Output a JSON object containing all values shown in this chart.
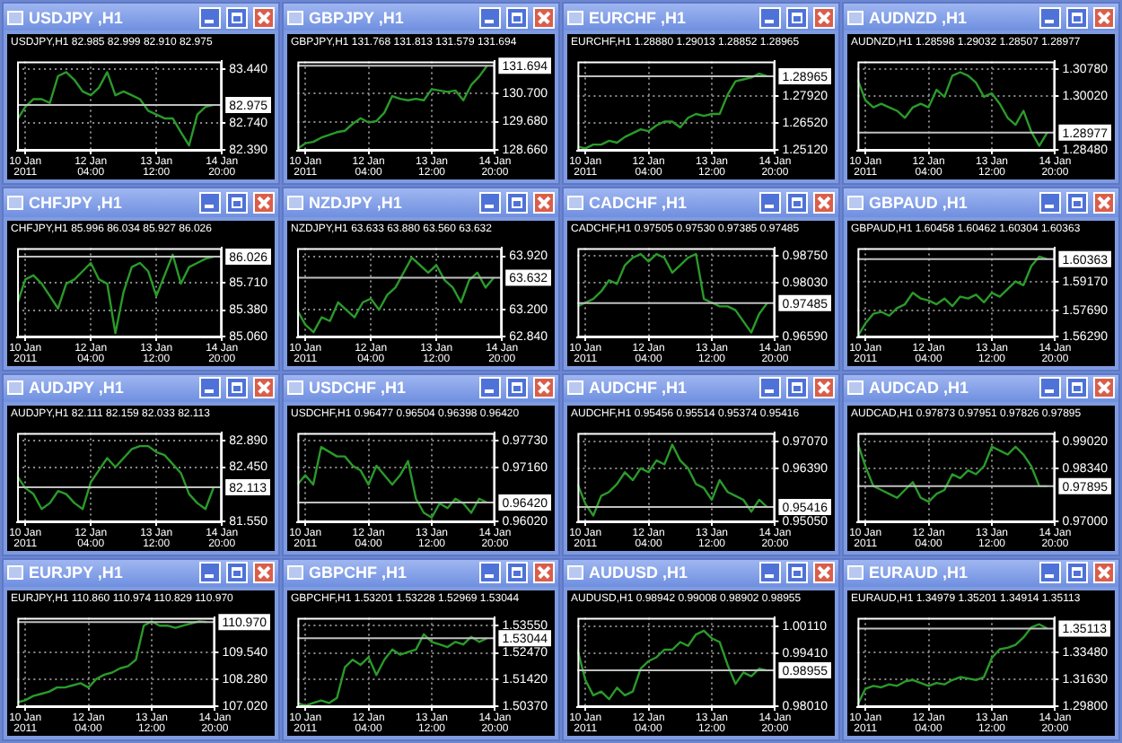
{
  "chart_data": [
    {
      "type": "line",
      "title": "USDJPY ,H1",
      "subtitle": "USDJPY,H1 82.985 82.999 82.910 82.975",
      "color": "#2a9a2a",
      "grid": true,
      "x": [
        "2011-01-10T16:00",
        "2011-01-10T20:00",
        "2011-01-11T00:00",
        "2011-01-11T04:00",
        "2011-01-11T08:00",
        "2011-01-11T12:00",
        "2011-01-11T16:00",
        "2011-01-11T20:00",
        "2011-01-12T00:00",
        "2011-01-12T04:00",
        "2011-01-12T08:00",
        "2011-01-12T12:00",
        "2011-01-12T16:00",
        "2011-01-12T20:00",
        "2011-01-13T00:00",
        "2011-01-13T04:00",
        "2011-01-13T08:00",
        "2011-01-13T12:00",
        "2011-01-13T16:00",
        "2011-01-13T20:00",
        "2011-01-14T00:00",
        "2011-01-14T04:00",
        "2011-01-14T08:00",
        "2011-01-14T12:00",
        "2011-01-14T16:00"
      ],
      "xlim": [
        "2011-01-10T16:00",
        "2011-01-14T20:00"
      ],
      "xticks": [
        {
          "value": "2011-01-10T20:00",
          "label": "10 Jan 2011"
        },
        {
          "value": "2011-01-12T04:00",
          "label": "12 Jan 04:00"
        },
        {
          "value": "2011-01-13T12:00",
          "label": "13 Jan 12:00"
        },
        {
          "value": "2011-01-14T20:00",
          "label": "14 Jan 20:00"
        }
      ],
      "values": [
        82.78,
        82.95,
        83.05,
        83.05,
        83.0,
        83.35,
        83.4,
        83.3,
        83.15,
        83.1,
        83.2,
        83.4,
        83.1,
        83.15,
        83.1,
        83.05,
        82.9,
        82.85,
        82.8,
        82.8,
        82.62,
        82.45,
        82.85,
        82.95,
        82.975
      ],
      "ylim": [
        82.38,
        83.54
      ],
      "yticks": [
        {
          "value": 82.39,
          "label": "82.390"
        },
        {
          "value": 82.74,
          "label": "82.740"
        },
        {
          "value": 83.44,
          "label": "83.440"
        }
      ],
      "ref_lines": [
        {
          "axis": "y",
          "value": 82.975,
          "label": "82.975",
          "color": "#c0c0c0"
        }
      ]
    },
    {
      "type": "line",
      "title": "GBPJPY ,H1",
      "subtitle": "GBPJPY,H1 131.768 131.813 131.579 131.694",
      "color": "#2a9a2a",
      "grid": true,
      "x": [
        "2011-01-10T16:00",
        "2011-01-10T20:00",
        "2011-01-11T00:00",
        "2011-01-11T04:00",
        "2011-01-11T08:00",
        "2011-01-11T12:00",
        "2011-01-11T16:00",
        "2011-01-11T20:00",
        "2011-01-12T00:00",
        "2011-01-12T04:00",
        "2011-01-12T08:00",
        "2011-01-12T12:00",
        "2011-01-12T16:00",
        "2011-01-12T20:00",
        "2011-01-13T00:00",
        "2011-01-13T04:00",
        "2011-01-13T08:00",
        "2011-01-13T12:00",
        "2011-01-13T16:00",
        "2011-01-13T20:00",
        "2011-01-14T00:00",
        "2011-01-14T04:00",
        "2011-01-14T08:00",
        "2011-01-14T12:00",
        "2011-01-14T16:00"
      ],
      "xlim": [
        "2011-01-10T16:00",
        "2011-01-14T20:00"
      ],
      "xticks": [
        {
          "value": "2011-01-10T20:00",
          "label": "10 Jan 2011"
        },
        {
          "value": "2011-01-12T04:00",
          "label": "12 Jan 04:00"
        },
        {
          "value": "2011-01-13T12:00",
          "label": "13 Jan 12:00"
        },
        {
          "value": "2011-01-14T20:00",
          "label": "14 Jan 20:00"
        }
      ],
      "values": [
        128.7,
        128.9,
        128.95,
        129.1,
        129.2,
        129.3,
        129.35,
        129.6,
        129.8,
        129.65,
        129.7,
        130.0,
        130.6,
        130.5,
        130.45,
        130.5,
        130.45,
        130.85,
        130.8,
        130.75,
        130.8,
        130.45,
        131.0,
        131.3,
        131.694
      ],
      "ylim": [
        128.63,
        131.85
      ],
      "yticks": [
        {
          "value": 128.66,
          "label": "128.660"
        },
        {
          "value": 129.68,
          "label": "129.680"
        },
        {
          "value": 130.7,
          "label": "130.700"
        }
      ],
      "ref_lines": [
        {
          "axis": "y",
          "value": 131.694,
          "label": "131.694",
          "color": "#c0c0c0"
        }
      ]
    },
    {
      "type": "line",
      "title": "EURCHF ,H1",
      "subtitle": "EURCHF,H1 1.28880 1.29013 1.28852 1.28965",
      "color": "#2a9a2a",
      "grid": true,
      "x": [
        "2011-01-10T16:00",
        "2011-01-10T20:00",
        "2011-01-11T00:00",
        "2011-01-11T04:00",
        "2011-01-11T08:00",
        "2011-01-11T12:00",
        "2011-01-11T16:00",
        "2011-01-11T20:00",
        "2011-01-12T00:00",
        "2011-01-12T04:00",
        "2011-01-12T08:00",
        "2011-01-12T12:00",
        "2011-01-12T16:00",
        "2011-01-12T20:00",
        "2011-01-13T00:00",
        "2011-01-13T04:00",
        "2011-01-13T08:00",
        "2011-01-13T12:00",
        "2011-01-13T16:00",
        "2011-01-13T20:00",
        "2011-01-14T00:00",
        "2011-01-14T04:00",
        "2011-01-14T08:00",
        "2011-01-14T12:00",
        "2011-01-14T16:00"
      ],
      "xlim": [
        "2011-01-10T16:00",
        "2011-01-14T20:00"
      ],
      "xticks": [
        {
          "value": "2011-01-10T20:00",
          "label": "10 Jan 2011"
        },
        {
          "value": "2011-01-12T04:00",
          "label": "12 Jan 04:00"
        },
        {
          "value": "2011-01-13T12:00",
          "label": "13 Jan 12:00"
        },
        {
          "value": "2011-01-14T20:00",
          "label": "14 Jan 20:00"
        }
      ],
      "values": [
        1.253,
        1.252,
        1.254,
        1.254,
        1.256,
        1.255,
        1.258,
        1.26,
        1.262,
        1.261,
        1.264,
        1.266,
        1.266,
        1.263,
        1.268,
        1.27,
        1.269,
        1.27,
        1.27,
        1.28,
        1.287,
        1.288,
        1.289,
        1.291,
        1.28965
      ],
      "ylim": [
        1.2508,
        1.2974
      ],
      "yticks": [
        {
          "value": 1.2512,
          "label": "1.25120"
        },
        {
          "value": 1.2652,
          "label": "1.26520"
        },
        {
          "value": 1.2792,
          "label": "1.27920"
        }
      ],
      "ref_lines": [
        {
          "axis": "y",
          "value": 1.28965,
          "label": "1.28965",
          "color": "#c0c0c0"
        }
      ]
    },
    {
      "type": "line",
      "title": "AUDNZD ,H1",
      "subtitle": "AUDNZD,H1 1.28598 1.29032 1.28507 1.28977",
      "color": "#2a9a2a",
      "grid": true,
      "x": [
        "2011-01-10T16:00",
        "2011-01-10T20:00",
        "2011-01-11T00:00",
        "2011-01-11T04:00",
        "2011-01-11T08:00",
        "2011-01-11T12:00",
        "2011-01-11T16:00",
        "2011-01-11T20:00",
        "2011-01-12T00:00",
        "2011-01-12T04:00",
        "2011-01-12T08:00",
        "2011-01-12T12:00",
        "2011-01-12T16:00",
        "2011-01-12T20:00",
        "2011-01-13T00:00",
        "2011-01-13T04:00",
        "2011-01-13T08:00",
        "2011-01-13T12:00",
        "2011-01-13T16:00",
        "2011-01-13T20:00",
        "2011-01-14T00:00",
        "2011-01-14T04:00",
        "2011-01-14T08:00",
        "2011-01-14T12:00",
        "2011-01-14T16:00"
      ],
      "xlim": [
        "2011-01-10T16:00",
        "2011-01-14T20:00"
      ],
      "xticks": [
        {
          "value": "2011-01-10T20:00",
          "label": "10 Jan 2011"
        },
        {
          "value": "2011-01-12T04:00",
          "label": "12 Jan 04:00"
        },
        {
          "value": "2011-01-13T12:00",
          "label": "13 Jan 12:00"
        },
        {
          "value": "2011-01-14T20:00",
          "label": "14 Jan 20:00"
        }
      ],
      "values": [
        1.305,
        1.299,
        1.297,
        1.298,
        1.297,
        1.296,
        1.294,
        1.297,
        1.298,
        1.297,
        1.302,
        1.3,
        1.306,
        1.307,
        1.306,
        1.304,
        1.3,
        1.301,
        1.298,
        1.294,
        1.292,
        1.296,
        1.29,
        1.286,
        1.28977
      ],
      "ylim": [
        1.2846,
        1.3101
      ],
      "yticks": [
        {
          "value": 1.2848,
          "label": "1.28480"
        },
        {
          "value": 1.3002,
          "label": "1.30020"
        },
        {
          "value": 1.3078,
          "label": "1.30780"
        }
      ],
      "ref_lines": [
        {
          "axis": "y",
          "value": 1.28977,
          "label": "1.28977",
          "color": "#c0c0c0"
        }
      ]
    },
    {
      "type": "line",
      "title": "CHFJPY ,H1",
      "subtitle": "CHFJPY,H1 85.996 86.034 85.927 86.026",
      "color": "#2a9a2a",
      "grid": true,
      "x": [
        "2011-01-10T16:00",
        "2011-01-10T20:00",
        "2011-01-11T00:00",
        "2011-01-11T04:00",
        "2011-01-11T08:00",
        "2011-01-11T12:00",
        "2011-01-11T16:00",
        "2011-01-11T20:00",
        "2011-01-12T00:00",
        "2011-01-12T04:00",
        "2011-01-12T08:00",
        "2011-01-12T12:00",
        "2011-01-12T16:00",
        "2011-01-12T20:00",
        "2011-01-13T00:00",
        "2011-01-13T04:00",
        "2011-01-13T08:00",
        "2011-01-13T12:00",
        "2011-01-13T16:00",
        "2011-01-13T20:00",
        "2011-01-14T00:00",
        "2011-01-14T04:00",
        "2011-01-14T08:00",
        "2011-01-14T12:00",
        "2011-01-14T16:00"
      ],
      "xlim": [
        "2011-01-10T16:00",
        "2011-01-14T20:00"
      ],
      "xticks": [
        {
          "value": "2011-01-10T20:00",
          "label": "10 Jan 2011"
        },
        {
          "value": "2011-01-12T04:00",
          "label": "12 Jan 04:00"
        },
        {
          "value": "2011-01-13T12:00",
          "label": "13 Jan 12:00"
        },
        {
          "value": "2011-01-14T20:00",
          "label": "14 Jan 20:00"
        }
      ],
      "values": [
        85.45,
        85.75,
        85.8,
        85.7,
        85.55,
        85.4,
        85.7,
        85.75,
        85.85,
        85.95,
        85.75,
        85.7,
        85.1,
        85.6,
        85.9,
        85.95,
        85.85,
        85.55,
        85.8,
        86.05,
        85.7,
        85.9,
        85.95,
        86.0,
        86.026
      ],
      "ylim": [
        85.05,
        86.13
      ],
      "yticks": [
        {
          "value": 85.06,
          "label": "85.060"
        },
        {
          "value": 85.38,
          "label": "85.380"
        },
        {
          "value": 85.71,
          "label": "85.710"
        }
      ],
      "ref_lines": [
        {
          "axis": "y",
          "value": 86.026,
          "label": "86.026",
          "color": "#c0c0c0"
        }
      ]
    },
    {
      "type": "line",
      "title": "NZDJPY ,H1",
      "subtitle": "NZDJPY,H1 63.633 63.880 63.560 63.632",
      "color": "#2a9a2a",
      "grid": true,
      "x": [
        "2011-01-10T16:00",
        "2011-01-10T20:00",
        "2011-01-11T00:00",
        "2011-01-11T04:00",
        "2011-01-11T08:00",
        "2011-01-11T12:00",
        "2011-01-11T16:00",
        "2011-01-11T20:00",
        "2011-01-12T00:00",
        "2011-01-12T04:00",
        "2011-01-12T08:00",
        "2011-01-12T12:00",
        "2011-01-12T16:00",
        "2011-01-12T20:00",
        "2011-01-13T00:00",
        "2011-01-13T04:00",
        "2011-01-13T08:00",
        "2011-01-13T12:00",
        "2011-01-13T16:00",
        "2011-01-13T20:00",
        "2011-01-14T00:00",
        "2011-01-14T04:00",
        "2011-01-14T08:00",
        "2011-01-14T12:00",
        "2011-01-14T16:00"
      ],
      "xlim": [
        "2011-01-10T16:00",
        "2011-01-14T20:00"
      ],
      "xticks": [
        {
          "value": "2011-01-10T20:00",
          "label": "10 Jan 2011"
        },
        {
          "value": "2011-01-12T04:00",
          "label": "12 Jan 04:00"
        },
        {
          "value": "2011-01-13T12:00",
          "label": "13 Jan 12:00"
        },
        {
          "value": "2011-01-14T20:00",
          "label": "14 Jan 20:00"
        }
      ],
      "values": [
        63.2,
        63.0,
        62.9,
        63.1,
        63.05,
        63.3,
        63.2,
        63.1,
        63.3,
        63.35,
        63.2,
        63.4,
        63.5,
        63.7,
        63.9,
        63.8,
        63.7,
        63.8,
        63.6,
        63.5,
        63.3,
        63.6,
        63.7,
        63.5,
        63.632
      ],
      "ylim": [
        62.83,
        64.03
      ],
      "yticks": [
        {
          "value": 62.84,
          "label": "62.840"
        },
        {
          "value": 63.2,
          "label": "63.200"
        },
        {
          "value": 63.92,
          "label": "63.920"
        }
      ],
      "ref_lines": [
        {
          "axis": "y",
          "value": 63.632,
          "label": "63.632",
          "color": "#c0c0c0"
        }
      ]
    },
    {
      "type": "line",
      "title": "CADCHF ,H1",
      "subtitle": "CADCHF,H1 0.97505 0.97530 0.97385 0.97485",
      "color": "#2a9a2a",
      "grid": true,
      "x": [
        "2011-01-10T16:00",
        "2011-01-10T20:00",
        "2011-01-11T00:00",
        "2011-01-11T04:00",
        "2011-01-11T08:00",
        "2011-01-11T12:00",
        "2011-01-11T16:00",
        "2011-01-11T20:00",
        "2011-01-12T00:00",
        "2011-01-12T04:00",
        "2011-01-12T08:00",
        "2011-01-12T12:00",
        "2011-01-12T16:00",
        "2011-01-12T20:00",
        "2011-01-13T00:00",
        "2011-01-13T04:00",
        "2011-01-13T08:00",
        "2011-01-13T12:00",
        "2011-01-13T16:00",
        "2011-01-13T20:00",
        "2011-01-14T00:00",
        "2011-01-14T04:00",
        "2011-01-14T08:00",
        "2011-01-14T12:00",
        "2011-01-14T16:00"
      ],
      "xlim": [
        "2011-01-10T16:00",
        "2011-01-14T20:00"
      ],
      "xticks": [
        {
          "value": "2011-01-10T20:00",
          "label": "10 Jan 2011"
        },
        {
          "value": "2011-01-12T04:00",
          "label": "12 Jan 04:00"
        },
        {
          "value": "2011-01-13T12:00",
          "label": "13 Jan 12:00"
        },
        {
          "value": "2011-01-14T20:00",
          "label": "14 Jan 20:00"
        }
      ],
      "values": [
        0.974,
        0.975,
        0.976,
        0.978,
        0.981,
        0.98,
        0.985,
        0.987,
        0.988,
        0.986,
        0.988,
        0.987,
        0.983,
        0.985,
        0.987,
        0.988,
        0.976,
        0.975,
        0.974,
        0.974,
        0.973,
        0.97,
        0.967,
        0.972,
        0.97485
      ],
      "ylim": [
        0.9657,
        0.9896
      ],
      "yticks": [
        {
          "value": 0.9659,
          "label": "0.96590"
        },
        {
          "value": 0.9803,
          "label": "0.98030"
        },
        {
          "value": 0.9875,
          "label": "0.98750"
        }
      ],
      "ref_lines": [
        {
          "axis": "y",
          "value": 0.97485,
          "label": "0.97485",
          "color": "#c0c0c0"
        }
      ]
    },
    {
      "type": "line",
      "title": "GBPAUD ,H1",
      "subtitle": "GBPAUD,H1 1.60458 1.60462 1.60304 1.60363",
      "color": "#2a9a2a",
      "grid": true,
      "x": [
        "2011-01-10T16:00",
        "2011-01-10T20:00",
        "2011-01-11T00:00",
        "2011-01-11T04:00",
        "2011-01-11T08:00",
        "2011-01-11T12:00",
        "2011-01-11T16:00",
        "2011-01-11T20:00",
        "2011-01-12T00:00",
        "2011-01-12T04:00",
        "2011-01-12T08:00",
        "2011-01-12T12:00",
        "2011-01-12T16:00",
        "2011-01-12T20:00",
        "2011-01-13T00:00",
        "2011-01-13T04:00",
        "2011-01-13T08:00",
        "2011-01-13T12:00",
        "2011-01-13T16:00",
        "2011-01-13T20:00",
        "2011-01-14T00:00",
        "2011-01-14T04:00",
        "2011-01-14T08:00",
        "2011-01-14T12:00",
        "2011-01-14T16:00"
      ],
      "xlim": [
        "2011-01-10T16:00",
        "2011-01-14T20:00"
      ],
      "xticks": [
        {
          "value": "2011-01-10T20:00",
          "label": "10 Jan 2011"
        },
        {
          "value": "2011-01-12T04:00",
          "label": "12 Jan 04:00"
        },
        {
          "value": "2011-01-13T12:00",
          "label": "13 Jan 12:00"
        },
        {
          "value": "2011-01-14T20:00",
          "label": "14 Jan 20:00"
        }
      ],
      "values": [
        1.563,
        1.57,
        1.575,
        1.576,
        1.574,
        1.578,
        1.58,
        1.586,
        1.583,
        1.582,
        1.58,
        1.583,
        1.579,
        1.584,
        1.583,
        1.585,
        1.581,
        1.586,
        1.584,
        1.588,
        1.592,
        1.59,
        1.6,
        1.605,
        1.60363
      ],
      "ylim": [
        1.5626,
        1.6095
      ],
      "yticks": [
        {
          "value": 1.5629,
          "label": "1.56290"
        },
        {
          "value": 1.5769,
          "label": "1.57690"
        },
        {
          "value": 1.5917,
          "label": "1.59170"
        }
      ],
      "ref_lines": [
        {
          "axis": "y",
          "value": 1.60363,
          "label": "1.60363",
          "color": "#c0c0c0"
        }
      ]
    },
    {
      "type": "line",
      "title": "AUDJPY ,H1",
      "subtitle": "AUDJPY,H1 82.111 82.159 82.033 82.113",
      "color": "#2a9a2a",
      "grid": true,
      "x": [
        "2011-01-10T16:00",
        "2011-01-10T20:00",
        "2011-01-11T00:00",
        "2011-01-11T04:00",
        "2011-01-11T08:00",
        "2011-01-11T12:00",
        "2011-01-11T16:00",
        "2011-01-11T20:00",
        "2011-01-12T00:00",
        "2011-01-12T04:00",
        "2011-01-12T08:00",
        "2011-01-12T12:00",
        "2011-01-12T16:00",
        "2011-01-12T20:00",
        "2011-01-13T00:00",
        "2011-01-13T04:00",
        "2011-01-13T08:00",
        "2011-01-13T12:00",
        "2011-01-13T16:00",
        "2011-01-13T20:00",
        "2011-01-14T00:00",
        "2011-01-14T04:00",
        "2011-01-14T08:00",
        "2011-01-14T12:00",
        "2011-01-14T16:00"
      ],
      "xlim": [
        "2011-01-10T16:00",
        "2011-01-14T20:00"
      ],
      "xticks": [
        {
          "value": "2011-01-10T20:00",
          "label": "10 Jan 2011"
        },
        {
          "value": "2011-01-12T04:00",
          "label": "12 Jan 04:00"
        },
        {
          "value": "2011-01-13T12:00",
          "label": "13 Jan 12:00"
        },
        {
          "value": "2011-01-14T20:00",
          "label": "14 Jan 20:00"
        }
      ],
      "values": [
        82.3,
        82.1,
        82.0,
        81.75,
        81.85,
        82.05,
        82.0,
        81.85,
        81.75,
        82.2,
        82.4,
        82.6,
        82.45,
        82.6,
        82.75,
        82.8,
        82.8,
        82.7,
        82.65,
        82.5,
        82.35,
        82.0,
        81.85,
        81.75,
        82.113
      ],
      "ylim": [
        81.53,
        83.02
      ],
      "yticks": [
        {
          "value": 81.55,
          "label": "81.550"
        },
        {
          "value": 82.45,
          "label": "82.450"
        },
        {
          "value": 82.89,
          "label": "82.890"
        }
      ],
      "ref_lines": [
        {
          "axis": "y",
          "value": 82.113,
          "label": "82.113",
          "color": "#c0c0c0"
        }
      ]
    },
    {
      "type": "line",
      "title": "USDCHF ,H1",
      "subtitle": "USDCHF,H1 0.96477 0.96504 0.96398 0.96420",
      "color": "#2a9a2a",
      "grid": true,
      "x": [
        "2011-01-10T16:00",
        "2011-01-10T20:00",
        "2011-01-11T00:00",
        "2011-01-11T04:00",
        "2011-01-11T08:00",
        "2011-01-11T12:00",
        "2011-01-11T16:00",
        "2011-01-11T20:00",
        "2011-01-12T00:00",
        "2011-01-12T04:00",
        "2011-01-12T08:00",
        "2011-01-12T12:00",
        "2011-01-12T16:00",
        "2011-01-12T20:00",
        "2011-01-13T00:00",
        "2011-01-13T04:00",
        "2011-01-13T08:00",
        "2011-01-13T12:00",
        "2011-01-13T16:00",
        "2011-01-13T20:00",
        "2011-01-14T00:00",
        "2011-01-14T04:00",
        "2011-01-14T08:00",
        "2011-01-14T12:00",
        "2011-01-14T16:00"
      ],
      "xlim": [
        "2011-01-10T16:00",
        "2011-01-14T20:00"
      ],
      "xticks": [
        {
          "value": "2011-01-10T20:00",
          "label": "10 Jan 2011"
        },
        {
          "value": "2011-01-12T04:00",
          "label": "12 Jan 04:00"
        },
        {
          "value": "2011-01-13T12:00",
          "label": "13 Jan 12:00"
        },
        {
          "value": "2011-01-14T20:00",
          "label": "14 Jan 20:00"
        }
      ],
      "values": [
        0.968,
        0.97,
        0.968,
        0.976,
        0.975,
        0.974,
        0.974,
        0.972,
        0.971,
        0.968,
        0.972,
        0.97,
        0.968,
        0.97,
        0.973,
        0.965,
        0.962,
        0.961,
        0.964,
        0.963,
        0.965,
        0.964,
        0.962,
        0.965,
        0.9642
      ],
      "ylim": [
        0.96,
        0.979
      ],
      "yticks": [
        {
          "value": 0.9602,
          "label": "0.96020"
        },
        {
          "value": 0.9716,
          "label": "0.97160"
        },
        {
          "value": 0.9773,
          "label": "0.97730"
        }
      ],
      "ref_lines": [
        {
          "axis": "y",
          "value": 0.9642,
          "label": "0.96420",
          "color": "#c0c0c0"
        }
      ]
    },
    {
      "type": "line",
      "title": "AUDCHF ,H1",
      "subtitle": "AUDCHF,H1 0.95456 0.95514 0.95374 0.95416",
      "color": "#2a9a2a",
      "grid": true,
      "x": [
        "2011-01-10T16:00",
        "2011-01-10T20:00",
        "2011-01-11T00:00",
        "2011-01-11T04:00",
        "2011-01-11T08:00",
        "2011-01-11T12:00",
        "2011-01-11T16:00",
        "2011-01-11T20:00",
        "2011-01-12T00:00",
        "2011-01-12T04:00",
        "2011-01-12T08:00",
        "2011-01-12T12:00",
        "2011-01-12T16:00",
        "2011-01-12T20:00",
        "2011-01-13T00:00",
        "2011-01-13T04:00",
        "2011-01-13T08:00",
        "2011-01-13T12:00",
        "2011-01-13T16:00",
        "2011-01-13T20:00",
        "2011-01-14T00:00",
        "2011-01-14T04:00",
        "2011-01-14T08:00",
        "2011-01-14T12:00",
        "2011-01-14T16:00"
      ],
      "xlim": [
        "2011-01-10T16:00",
        "2011-01-14T20:00"
      ],
      "xticks": [
        {
          "value": "2011-01-10T20:00",
          "label": "10 Jan 2011"
        },
        {
          "value": "2011-01-12T04:00",
          "label": "12 Jan 04:00"
        },
        {
          "value": "2011-01-13T12:00",
          "label": "13 Jan 12:00"
        },
        {
          "value": "2011-01-14T20:00",
          "label": "14 Jan 20:00"
        }
      ],
      "values": [
        0.96,
        0.955,
        0.952,
        0.957,
        0.958,
        0.96,
        0.963,
        0.961,
        0.964,
        0.963,
        0.966,
        0.965,
        0.97,
        0.966,
        0.964,
        0.96,
        0.959,
        0.956,
        0.961,
        0.958,
        0.957,
        0.956,
        0.953,
        0.956,
        0.95416
      ],
      "ylim": [
        0.9503,
        0.973
      ],
      "yticks": [
        {
          "value": 0.9505,
          "label": "0.95050"
        },
        {
          "value": 0.9639,
          "label": "0.96390"
        },
        {
          "value": 0.9707,
          "label": "0.97070"
        }
      ],
      "ref_lines": [
        {
          "axis": "y",
          "value": 0.95416,
          "label": "0.95416",
          "color": "#c0c0c0"
        }
      ]
    },
    {
      "type": "line",
      "title": "AUDCAD ,H1",
      "subtitle": "AUDCAD,H1 0.97873 0.97951 0.97826 0.97895",
      "color": "#2a9a2a",
      "grid": true,
      "x": [
        "2011-01-10T16:00",
        "2011-01-10T20:00",
        "2011-01-11T00:00",
        "2011-01-11T04:00",
        "2011-01-11T08:00",
        "2011-01-11T12:00",
        "2011-01-11T16:00",
        "2011-01-11T20:00",
        "2011-01-12T00:00",
        "2011-01-12T04:00",
        "2011-01-12T08:00",
        "2011-01-12T12:00",
        "2011-01-12T16:00",
        "2011-01-12T20:00",
        "2011-01-13T00:00",
        "2011-01-13T04:00",
        "2011-01-13T08:00",
        "2011-01-13T12:00",
        "2011-01-13T16:00",
        "2011-01-13T20:00",
        "2011-01-14T00:00",
        "2011-01-14T04:00",
        "2011-01-14T08:00",
        "2011-01-14T12:00",
        "2011-01-14T16:00"
      ],
      "xlim": [
        "2011-01-10T16:00",
        "2011-01-14T20:00"
      ],
      "xticks": [
        {
          "value": "2011-01-10T20:00",
          "label": "10 Jan 2011"
        },
        {
          "value": "2011-01-12T04:00",
          "label": "12 Jan 04:00"
        },
        {
          "value": "2011-01-13T12:00",
          "label": "13 Jan 12:00"
        },
        {
          "value": "2011-01-14T20:00",
          "label": "14 Jan 20:00"
        }
      ],
      "values": [
        0.99,
        0.984,
        0.979,
        0.978,
        0.977,
        0.976,
        0.978,
        0.98,
        0.976,
        0.975,
        0.977,
        0.978,
        0.982,
        0.981,
        0.983,
        0.982,
        0.984,
        0.989,
        0.988,
        0.987,
        0.989,
        0.987,
        0.984,
        0.979,
        0.97895
      ],
      "ylim": [
        0.9698,
        0.9925
      ],
      "yticks": [
        {
          "value": 0.97,
          "label": "0.97000"
        },
        {
          "value": 0.9834,
          "label": "0.98340"
        },
        {
          "value": 0.9902,
          "label": "0.99020"
        }
      ],
      "ref_lines": [
        {
          "axis": "y",
          "value": 0.97895,
          "label": "0.97895",
          "color": "#c0c0c0"
        }
      ]
    },
    {
      "type": "line",
      "title": "EURJPY ,H1",
      "subtitle": "EURJPY,H1 110.860 110.974 110.829 110.970",
      "color": "#2a9a2a",
      "grid": true,
      "x": [
        "2011-01-10T16:00",
        "2011-01-10T20:00",
        "2011-01-11T00:00",
        "2011-01-11T04:00",
        "2011-01-11T08:00",
        "2011-01-11T12:00",
        "2011-01-11T16:00",
        "2011-01-11T20:00",
        "2011-01-12T00:00",
        "2011-01-12T04:00",
        "2011-01-12T08:00",
        "2011-01-12T12:00",
        "2011-01-12T16:00",
        "2011-01-12T20:00",
        "2011-01-13T00:00",
        "2011-01-13T04:00",
        "2011-01-13T08:00",
        "2011-01-13T12:00",
        "2011-01-13T16:00",
        "2011-01-13T20:00",
        "2011-01-14T00:00",
        "2011-01-14T04:00",
        "2011-01-14T08:00",
        "2011-01-14T12:00",
        "2011-01-14T16:00"
      ],
      "xlim": [
        "2011-01-10T16:00",
        "2011-01-14T20:00"
      ],
      "xticks": [
        {
          "value": "2011-01-10T20:00",
          "label": "10 Jan 2011"
        },
        {
          "value": "2011-01-12T04:00",
          "label": "12 Jan 04:00"
        },
        {
          "value": "2011-01-13T12:00",
          "label": "13 Jan 12:00"
        },
        {
          "value": "2011-01-14T20:00",
          "label": "14 Jan 20:00"
        }
      ],
      "values": [
        107.2,
        107.3,
        107.5,
        107.6,
        107.7,
        107.9,
        107.9,
        108.0,
        108.1,
        107.9,
        108.3,
        108.5,
        108.6,
        108.8,
        108.9,
        109.2,
        110.8,
        111.0,
        110.8,
        110.8,
        110.7,
        110.8,
        110.9,
        111.0,
        110.97
      ],
      "ylim": [
        106.98,
        111.17
      ],
      "yticks": [
        {
          "value": 107.02,
          "label": "107.020"
        },
        {
          "value": 108.28,
          "label": "108.280"
        },
        {
          "value": 109.54,
          "label": "109.540"
        }
      ],
      "ref_lines": [
        {
          "axis": "y",
          "value": 110.97,
          "label": "110.970",
          "color": "#c0c0c0"
        }
      ]
    },
    {
      "type": "line",
      "title": "GBPCHF ,H1",
      "subtitle": "GBPCHF,H1 1.53201 1.53228 1.52969 1.53044",
      "color": "#2a9a2a",
      "grid": true,
      "x": [
        "2011-01-10T16:00",
        "2011-01-10T20:00",
        "2011-01-11T00:00",
        "2011-01-11T04:00",
        "2011-01-11T08:00",
        "2011-01-11T12:00",
        "2011-01-11T16:00",
        "2011-01-11T20:00",
        "2011-01-12T00:00",
        "2011-01-12T04:00",
        "2011-01-12T08:00",
        "2011-01-12T12:00",
        "2011-01-12T16:00",
        "2011-01-12T20:00",
        "2011-01-13T00:00",
        "2011-01-13T04:00",
        "2011-01-13T08:00",
        "2011-01-13T12:00",
        "2011-01-13T16:00",
        "2011-01-13T20:00",
        "2011-01-14T00:00",
        "2011-01-14T04:00",
        "2011-01-14T08:00",
        "2011-01-14T12:00",
        "2011-01-14T16:00"
      ],
      "xlim": [
        "2011-01-10T16:00",
        "2011-01-14T20:00"
      ],
      "xticks": [
        {
          "value": "2011-01-10T20:00",
          "label": "10 Jan 2011"
        },
        {
          "value": "2011-01-12T04:00",
          "label": "12 Jan 04:00"
        },
        {
          "value": "2011-01-13T12:00",
          "label": "13 Jan 12:00"
        },
        {
          "value": "2011-01-14T20:00",
          "label": "14 Jan 20:00"
        }
      ],
      "values": [
        1.505,
        1.504,
        1.505,
        1.506,
        1.505,
        1.507,
        1.519,
        1.522,
        1.52,
        1.523,
        1.516,
        1.522,
        1.526,
        1.524,
        1.525,
        1.526,
        1.532,
        1.529,
        1.528,
        1.527,
        1.529,
        1.528,
        1.531,
        1.529,
        1.53044
      ],
      "ylim": [
        1.5034,
        1.5385
      ],
      "yticks": [
        {
          "value": 1.5037,
          "label": "1.50370"
        },
        {
          "value": 1.5142,
          "label": "1.51420"
        },
        {
          "value": 1.5247,
          "label": "1.52470"
        },
        {
          "value": 1.5355,
          "label": "1.53550"
        }
      ],
      "ref_lines": [
        {
          "axis": "y",
          "value": 1.53044,
          "label": "1.53044",
          "color": "#c0c0c0"
        }
      ]
    },
    {
      "type": "line",
      "title": "AUDUSD ,H1",
      "subtitle": "AUDUSD,H1 0.98942 0.99008 0.98902 0.98955",
      "color": "#2a9a2a",
      "grid": true,
      "x": [
        "2011-01-10T16:00",
        "2011-01-10T20:00",
        "2011-01-11T00:00",
        "2011-01-11T04:00",
        "2011-01-11T08:00",
        "2011-01-11T12:00",
        "2011-01-11T16:00",
        "2011-01-11T20:00",
        "2011-01-12T00:00",
        "2011-01-12T04:00",
        "2011-01-12T08:00",
        "2011-01-12T12:00",
        "2011-01-12T16:00",
        "2011-01-12T20:00",
        "2011-01-13T00:00",
        "2011-01-13T04:00",
        "2011-01-13T08:00",
        "2011-01-13T12:00",
        "2011-01-13T16:00",
        "2011-01-13T20:00",
        "2011-01-14T00:00",
        "2011-01-14T04:00",
        "2011-01-14T08:00",
        "2011-01-14T12:00",
        "2011-01-14T16:00"
      ],
      "xlim": [
        "2011-01-10T16:00",
        "2011-01-14T20:00"
      ],
      "xticks": [
        {
          "value": "2011-01-10T20:00",
          "label": "10 Jan 2011"
        },
        {
          "value": "2011-01-12T04:00",
          "label": "12 Jan 04:00"
        },
        {
          "value": "2011-01-13T12:00",
          "label": "13 Jan 12:00"
        },
        {
          "value": "2011-01-14T20:00",
          "label": "14 Jan 20:00"
        }
      ],
      "values": [
        0.995,
        0.987,
        0.983,
        0.984,
        0.982,
        0.985,
        0.983,
        0.984,
        0.99,
        0.992,
        0.993,
        0.995,
        0.995,
        0.997,
        0.996,
        0.999,
        1.0,
        0.998,
        0.997,
        0.991,
        0.986,
        0.989,
        0.988,
        0.99,
        0.98955
      ],
      "ylim": [
        0.9799,
        1.0034
      ],
      "yticks": [
        {
          "value": 0.9801,
          "label": "0.98010"
        },
        {
          "value": 0.9941,
          "label": "0.99410"
        },
        {
          "value": 1.0011,
          "label": "1.00110"
        }
      ],
      "ref_lines": [
        {
          "axis": "y",
          "value": 0.98955,
          "label": "0.98955",
          "color": "#c0c0c0"
        }
      ]
    },
    {
      "type": "line",
      "title": "EURAUD ,H1",
      "subtitle": "EURAUD,H1 1.34979 1.35201 1.34914 1.35113",
      "color": "#2a9a2a",
      "grid": true,
      "x": [
        "2011-01-10T16:00",
        "2011-01-10T20:00",
        "2011-01-11T00:00",
        "2011-01-11T04:00",
        "2011-01-11T08:00",
        "2011-01-11T12:00",
        "2011-01-11T16:00",
        "2011-01-11T20:00",
        "2011-01-12T00:00",
        "2011-01-12T04:00",
        "2011-01-12T08:00",
        "2011-01-12T12:00",
        "2011-01-12T16:00",
        "2011-01-12T20:00",
        "2011-01-13T00:00",
        "2011-01-13T04:00",
        "2011-01-13T08:00",
        "2011-01-13T12:00",
        "2011-01-13T16:00",
        "2011-01-13T20:00",
        "2011-01-14T00:00",
        "2011-01-14T04:00",
        "2011-01-14T08:00",
        "2011-01-14T12:00",
        "2011-01-14T16:00"
      ],
      "xlim": [
        "2011-01-10T16:00",
        "2011-01-14T20:00"
      ],
      "xticks": [
        {
          "value": "2011-01-10T20:00",
          "label": "10 Jan 2011"
        },
        {
          "value": "2011-01-12T04:00",
          "label": "12 Jan 04:00"
        },
        {
          "value": "2011-01-13T12:00",
          "label": "13 Jan 12:00"
        },
        {
          "value": "2011-01-14T20:00",
          "label": "14 Jan 20:00"
        }
      ],
      "values": [
        1.299,
        1.31,
        1.312,
        1.311,
        1.313,
        1.312,
        1.315,
        1.316,
        1.314,
        1.312,
        1.314,
        1.313,
        1.316,
        1.318,
        1.317,
        1.316,
        1.318,
        1.331,
        1.337,
        1.338,
        1.34,
        1.345,
        1.352,
        1.354,
        1.35113
      ],
      "ylim": [
        1.2975,
        1.3585
      ],
      "yticks": [
        {
          "value": 1.298,
          "label": "1.29800"
        },
        {
          "value": 1.3163,
          "label": "1.31630"
        },
        {
          "value": 1.3348,
          "label": "1.33480"
        }
      ],
      "ref_lines": [
        {
          "axis": "y",
          "value": 1.35113,
          "label": "1.35113",
          "color": "#c0c0c0"
        }
      ]
    }
  ]
}
